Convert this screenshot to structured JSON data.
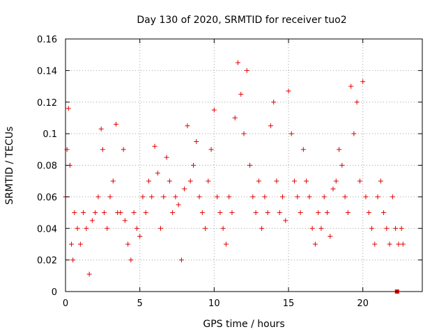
{
  "colors": {
    "series": "#e00000",
    "background": "#ffffff",
    "grid": "#a0a0a0"
  },
  "chart_data": {
    "type": "scatter",
    "title": "Day 130 of 2020, SRMTID for receiver tuo2",
    "xlabel": "GPS time / hours",
    "ylabel": "SRMTID / TECUs",
    "xlim": [
      0,
      24
    ],
    "ylim": [
      0,
      0.16
    ],
    "xticks": [
      0,
      5,
      10,
      15,
      20
    ],
    "xtick_labels": [
      "0",
      "5",
      "10",
      "15",
      "20"
    ],
    "yticks": [
      0,
      0.02,
      0.04,
      0.06,
      0.08,
      0.1,
      0.12,
      0.14,
      0.16
    ],
    "ytick_labels": [
      "0",
      "0.02",
      "0.04",
      "0.06",
      "0.08",
      "0.1",
      "0.12",
      "0.14",
      "0.16"
    ],
    "grid": true,
    "marker": "plus",
    "series": [
      {
        "name": "SRMTID",
        "x": [
          0.0,
          0.1,
          0.2,
          0.3,
          0.4,
          0.5,
          0.6,
          0.8,
          1.0,
          1.2,
          1.4,
          1.6,
          1.8,
          2.0,
          2.2,
          2.4,
          2.5,
          2.6,
          2.8,
          3.0,
          3.2,
          3.4,
          3.5,
          3.7,
          3.9,
          4.0,
          4.2,
          4.4,
          4.6,
          4.8,
          5.0,
          5.2,
          5.4,
          5.6,
          5.8,
          6.0,
          6.2,
          6.4,
          6.6,
          6.8,
          7.0,
          7.2,
          7.4,
          7.6,
          7.8,
          8.0,
          8.2,
          8.4,
          8.6,
          8.8,
          9.0,
          9.2,
          9.4,
          9.6,
          9.8,
          10.0,
          10.2,
          10.4,
          10.6,
          10.8,
          11.0,
          11.2,
          11.4,
          11.6,
          11.8,
          12.0,
          12.2,
          12.4,
          12.6,
          12.8,
          13.0,
          13.2,
          13.4,
          13.6,
          13.8,
          14.0,
          14.2,
          14.4,
          14.6,
          14.8,
          15.0,
          15.2,
          15.4,
          15.6,
          15.8,
          16.0,
          16.2,
          16.4,
          16.6,
          16.8,
          17.0,
          17.2,
          17.4,
          17.6,
          17.8,
          18.0,
          18.2,
          18.4,
          18.6,
          18.8,
          19.0,
          19.2,
          19.4,
          19.6,
          19.8,
          20.0,
          20.2,
          20.4,
          20.6,
          20.8,
          21.0,
          21.2,
          21.4,
          21.6,
          21.8,
          22.0,
          22.2,
          22.4,
          22.6,
          22.7
        ],
        "y": [
          0.06,
          0.09,
          0.116,
          0.08,
          0.03,
          0.02,
          0.05,
          0.04,
          0.03,
          0.05,
          0.04,
          0.011,
          0.045,
          0.05,
          0.06,
          0.103,
          0.09,
          0.05,
          0.04,
          0.06,
          0.07,
          0.106,
          0.05,
          0.05,
          0.09,
          0.045,
          0.03,
          0.02,
          0.05,
          0.04,
          0.035,
          0.06,
          0.05,
          0.07,
          0.06,
          0.092,
          0.075,
          0.04,
          0.06,
          0.085,
          0.07,
          0.05,
          0.06,
          0.055,
          0.02,
          0.065,
          0.105,
          0.07,
          0.08,
          0.095,
          0.06,
          0.05,
          0.04,
          0.07,
          0.09,
          0.115,
          0.06,
          0.05,
          0.04,
          0.03,
          0.06,
          0.05,
          0.11,
          0.145,
          0.125,
          0.1,
          0.14,
          0.08,
          0.06,
          0.05,
          0.07,
          0.04,
          0.06,
          0.05,
          0.105,
          0.12,
          0.07,
          0.05,
          0.06,
          0.045,
          0.127,
          0.1,
          0.07,
          0.06,
          0.05,
          0.09,
          0.07,
          0.06,
          0.04,
          0.03,
          0.05,
          0.04,
          0.06,
          0.05,
          0.035,
          0.065,
          0.07,
          0.09,
          0.08,
          0.06,
          0.05,
          0.13,
          0.1,
          0.12,
          0.07,
          0.133,
          0.06,
          0.05,
          0.04,
          0.03,
          0.06,
          0.07,
          0.05,
          0.04,
          0.03,
          0.06,
          0.04,
          0.03,
          0.04,
          0.03
        ],
        "markers_sample_note": "representative subset"
      },
      {
        "name": "marker-square",
        "x": [
          22.3
        ],
        "y": [
          0.0
        ]
      }
    ]
  }
}
